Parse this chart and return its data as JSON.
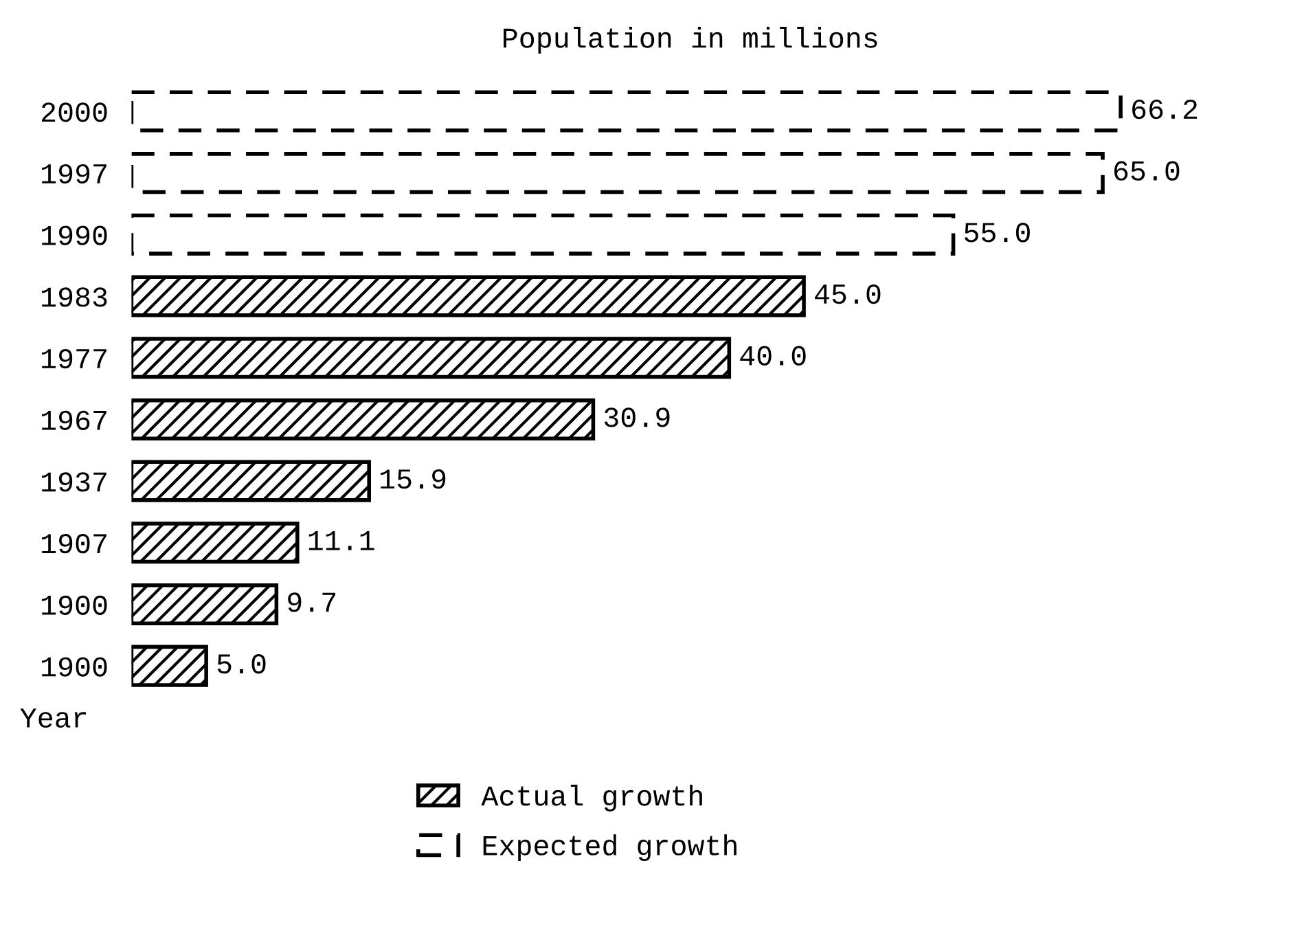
{
  "chart_data": {
    "type": "bar",
    "orientation": "horizontal",
    "title": "Population in millions",
    "ylabel": "Year",
    "categories": [
      "2000",
      "1997",
      "1990",
      "1983",
      "1977",
      "1967",
      "1937",
      "1907",
      "1900",
      "1900"
    ],
    "series": [
      {
        "name": "Actual growth",
        "color": "#000000",
        "line_style": "solid",
        "values": [
          null,
          null,
          null,
          45.0,
          40.0,
          30.9,
          15.9,
          11.1,
          9.7,
          5.0
        ],
        "value_labels": [
          null,
          null,
          null,
          "45.0",
          "40.0",
          "30.9",
          "15.9",
          "11.1",
          "9.7",
          "5.0"
        ]
      },
      {
        "name": "Expected growth",
        "color": "#000000",
        "line_style": "dashed",
        "values": [
          66.2,
          65.0,
          55.0,
          null,
          null,
          null,
          null,
          null,
          null,
          null
        ],
        "value_labels": [
          "66.2",
          "65.0",
          "55.0",
          null,
          null,
          null,
          null,
          null,
          null,
          null
        ]
      }
    ],
    "legend": "bottom",
    "grid": false
  }
}
